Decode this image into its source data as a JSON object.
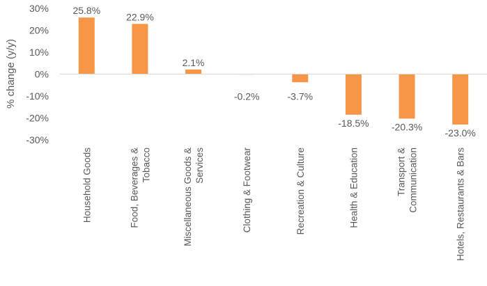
{
  "chart_data": {
    "type": "bar",
    "title": "",
    "xlabel": "",
    "ylabel": "% change (y/y)",
    "ylim": [
      -30,
      30
    ],
    "y_ticks": [
      30,
      20,
      10,
      0,
      -10,
      -20,
      -30
    ],
    "y_tick_labels": [
      "30%",
      "20%",
      "10%",
      "0%",
      "-10%",
      "-20%",
      "-30%"
    ],
    "categories": [
      "Household Goods",
      "Food, Beverages & Tobacco",
      "Miscellaneous Goods & Services",
      "Clothing & Footwear",
      "Recreation & Culture",
      "Health & Education",
      "Transport & Communication",
      "Hotels, Restaurants & Bars"
    ],
    "category_label_lines": [
      [
        "Household Goods"
      ],
      [
        "Food, Beverages &",
        "Tobacco"
      ],
      [
        "Miscellaneous Goods &",
        "Services"
      ],
      [
        "Clothing & Footwear"
      ],
      [
        "Recreation & Culture"
      ],
      [
        "Health & Education"
      ],
      [
        "Transport &",
        "Communication"
      ],
      [
        "Hotels, Restaurants & Bars"
      ]
    ],
    "values": [
      25.8,
      22.9,
      2.1,
      -0.2,
      -3.7,
      -18.5,
      -20.3,
      -23.0
    ],
    "data_labels": [
      "25.8%",
      "22.9%",
      "2.1%",
      "-0.2%",
      "-3.7%",
      "-18.5%",
      "-20.3%",
      "-23.0%"
    ],
    "legend": "none",
    "grid": false,
    "colors": {
      "bar": "#F79646",
      "axis": "#D9D9D9",
      "text": "#595959"
    }
  }
}
